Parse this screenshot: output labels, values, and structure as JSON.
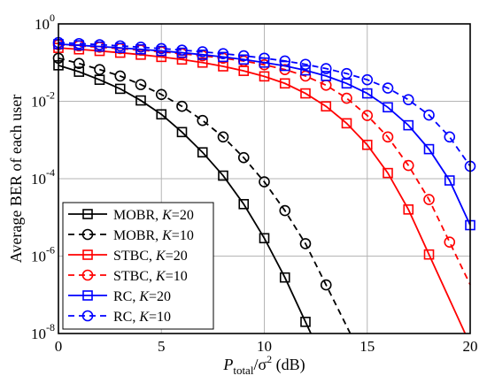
{
  "chart_data": {
    "type": "line",
    "x_axis": {
      "label_main": "P",
      "label_sub": "total",
      "label_rest": "/σ",
      "label_sup": "2",
      "label_unit": " (dB)",
      "lim": [
        0,
        20
      ],
      "ticks": [
        0,
        5,
        10,
        15,
        20
      ]
    },
    "y_axis": {
      "label": "Average BER of each user",
      "scale": "log",
      "lim": [
        1e-08,
        1
      ],
      "ticks": [
        {
          "value": 1,
          "base": "10",
          "exp": "0"
        },
        {
          "value": 0.01,
          "base": "10",
          "exp": "-2"
        },
        {
          "value": 0.0001,
          "base": "10",
          "exp": "-4"
        },
        {
          "value": 1e-06,
          "base": "10",
          "exp": "-6"
        },
        {
          "value": 1e-08,
          "base": "10",
          "exp": "-8"
        }
      ]
    },
    "grid": true,
    "legend_position": "bottom-left",
    "series": [
      {
        "name": "MOBR, K=20",
        "label_prefix": "MOBR, ",
        "label_var": "K",
        "label_suffix": "=20",
        "color": "#000000",
        "dash": "solid",
        "marker": "square",
        "x": [
          0,
          1,
          2,
          3,
          4,
          5,
          6,
          7,
          8,
          9,
          10,
          11,
          12
        ],
        "y": [
          0.085,
          0.058,
          0.036,
          0.021,
          0.0105,
          0.0046,
          0.0016,
          0.00048,
          0.00012,
          2.2e-05,
          2.9e-06,
          2.8e-07,
          2e-08
        ]
      },
      {
        "name": "MOBR, K=10",
        "label_prefix": "MOBR, ",
        "label_var": "K",
        "label_suffix": "=10",
        "color": "#000000",
        "dash": "dashed",
        "marker": "circle",
        "x": [
          0,
          1,
          2,
          3,
          4,
          5,
          6,
          7,
          8,
          9,
          10,
          11,
          12,
          13
        ],
        "y": [
          0.13,
          0.095,
          0.066,
          0.045,
          0.027,
          0.015,
          0.0074,
          0.0032,
          0.0012,
          0.00035,
          8.3e-05,
          1.5e-05,
          2.1e-06,
          1.8e-07
        ]
      },
      {
        "name": "STBC, K=20",
        "label_prefix": "STBC, ",
        "label_var": "K",
        "label_suffix": "=20",
        "color": "#ff0000",
        "dash": "solid",
        "marker": "square",
        "x": [
          0,
          1,
          2,
          3,
          4,
          5,
          6,
          7,
          8,
          9,
          10,
          11,
          12,
          13,
          14,
          15,
          16,
          17,
          18
        ],
        "y": [
          0.24,
          0.22,
          0.2,
          0.18,
          0.16,
          0.14,
          0.12,
          0.1,
          0.08,
          0.061,
          0.044,
          0.029,
          0.016,
          0.0074,
          0.0027,
          0.00075,
          0.00014,
          1.6e-05,
          1.1e-06
        ]
      },
      {
        "name": "STBC, K=10",
        "label_prefix": "STBC, ",
        "label_var": "K",
        "label_suffix": "=10",
        "color": "#ff0000",
        "dash": "dashed",
        "marker": "circle",
        "x": [
          0,
          1,
          2,
          3,
          4,
          5,
          6,
          7,
          8,
          9,
          10,
          11,
          12,
          13,
          14,
          15,
          16,
          17,
          18,
          19
        ],
        "y": [
          0.29,
          0.27,
          0.25,
          0.23,
          0.21,
          0.19,
          0.17,
          0.15,
          0.13,
          0.11,
          0.088,
          0.066,
          0.045,
          0.026,
          0.012,
          0.0043,
          0.0012,
          0.00022,
          2.9e-05,
          2.3e-06
        ]
      },
      {
        "name": "RC, K=20",
        "label_prefix": "RC, ",
        "label_var": "K",
        "label_suffix": "=20",
        "color": "#0000ff",
        "dash": "solid",
        "marker": "square",
        "x": [
          0,
          1,
          2,
          3,
          4,
          5,
          6,
          7,
          8,
          9,
          10,
          11,
          12,
          13,
          14,
          15,
          16,
          17,
          18,
          19,
          20
        ],
        "y": [
          0.3,
          0.28,
          0.26,
          0.24,
          0.22,
          0.2,
          0.18,
          0.16,
          0.14,
          0.12,
          0.1,
          0.082,
          0.063,
          0.045,
          0.029,
          0.016,
          0.007,
          0.0024,
          0.00058,
          9e-05,
          6.3e-06
        ]
      },
      {
        "name": "RC, K=10",
        "label_prefix": "RC, ",
        "label_var": "K",
        "label_suffix": "=10",
        "color": "#0000ff",
        "dash": "dashed",
        "marker": "circle",
        "x": [
          0,
          1,
          2,
          3,
          4,
          5,
          6,
          7,
          8,
          9,
          10,
          11,
          12,
          13,
          14,
          15,
          16,
          17,
          18,
          19,
          20
        ],
        "y": [
          0.33,
          0.31,
          0.29,
          0.27,
          0.25,
          0.23,
          0.21,
          0.19,
          0.17,
          0.15,
          0.13,
          0.11,
          0.09,
          0.07,
          0.052,
          0.036,
          0.022,
          0.011,
          0.0044,
          0.0012,
          0.00021
        ]
      }
    ]
  }
}
